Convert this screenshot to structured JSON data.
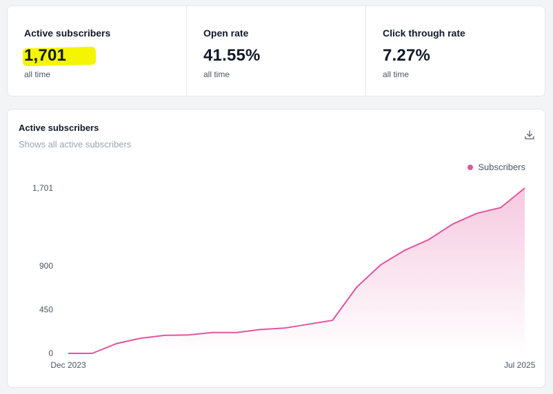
{
  "stats": [
    {
      "label": "Active subscribers",
      "value": "1,701",
      "sub": "all time"
    },
    {
      "label": "Open rate",
      "value": "41.55%",
      "sub": "all time"
    },
    {
      "label": "Click through rate",
      "value": "7.27%",
      "sub": "all time"
    }
  ],
  "chart_card": {
    "title": "Active subscribers",
    "subtitle": "Shows all active subscribers"
  },
  "icons": {
    "download": "download-icon"
  },
  "colors": {
    "series": "#e0559c",
    "highlight": "#f5f500"
  },
  "chart_data": {
    "type": "area",
    "title": "Active subscribers",
    "legend": [
      "Subscribers"
    ],
    "legend_position": "top-right",
    "grid": false,
    "x_labels": [
      "Dec 2023",
      "Jul 2025"
    ],
    "y_ticks": [
      "0",
      "450",
      "900",
      "1,701"
    ],
    "ylim": [
      0,
      1701
    ],
    "series": [
      {
        "name": "Subscribers",
        "values": [
          0,
          0,
          100,
          155,
          185,
          190,
          215,
          215,
          245,
          260,
          300,
          340,
          680,
          910,
          1060,
          1170,
          1330,
          1440,
          1500,
          1701
        ]
      }
    ]
  }
}
